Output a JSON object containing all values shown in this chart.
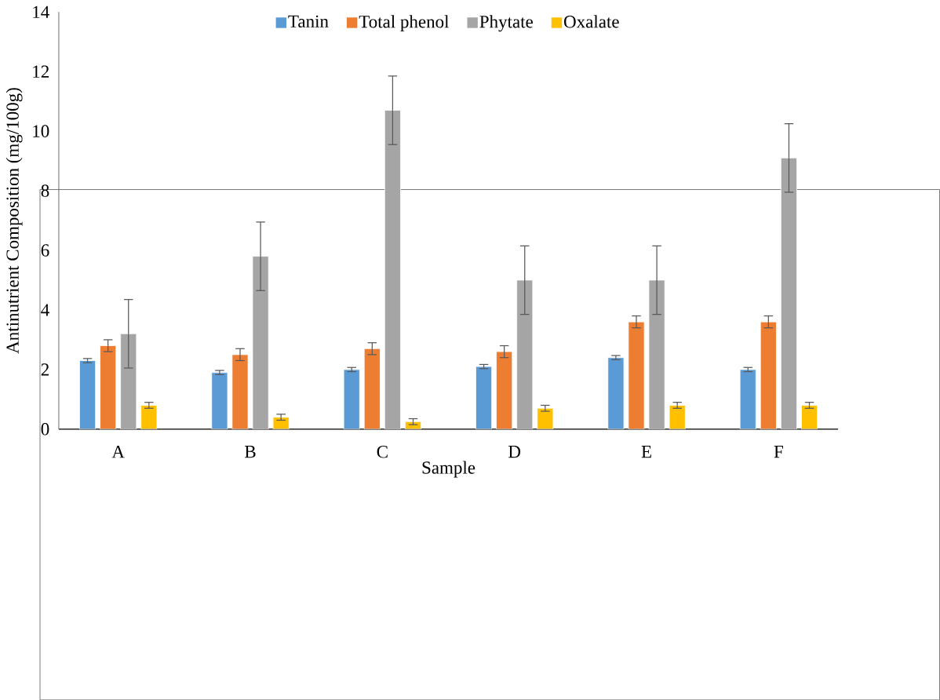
{
  "chart_data": {
    "type": "bar",
    "xlabel": "Sample",
    "ylabel": "Antinutrient Composition (mg/100g)",
    "categories": [
      "A",
      "B",
      "C",
      "D",
      "E",
      "F"
    ],
    "series": [
      {
        "name": "Tanin",
        "color": "#5b9bd5",
        "values": [
          2.3,
          1.9,
          2.0,
          2.1,
          2.4,
          2.0
        ],
        "errors": [
          0.07,
          0.07,
          0.07,
          0.07,
          0.07,
          0.07
        ]
      },
      {
        "name": "Total phenol",
        "color": "#ed7d31",
        "values": [
          2.8,
          2.5,
          2.7,
          2.6,
          3.6,
          3.6
        ],
        "errors": [
          0.2,
          0.2,
          0.2,
          0.2,
          0.2,
          0.2
        ]
      },
      {
        "name": "Phytate",
        "color": "#a5a5a5",
        "values": [
          3.2,
          5.8,
          10.7,
          5.0,
          5.0,
          9.1
        ],
        "errors": [
          1.15,
          1.15,
          1.15,
          1.15,
          1.15,
          1.15
        ]
      },
      {
        "name": "Oxalate",
        "color": "#ffc000",
        "values": [
          0.8,
          0.4,
          0.25,
          0.7,
          0.8,
          0.8
        ],
        "errors": [
          0.1,
          0.1,
          0.1,
          0.1,
          0.1,
          0.1
        ]
      }
    ],
    "ylim": [
      0,
      14
    ],
    "yticks": [
      0,
      2,
      4,
      6,
      8,
      10,
      12,
      14
    ],
    "legend": "top"
  }
}
